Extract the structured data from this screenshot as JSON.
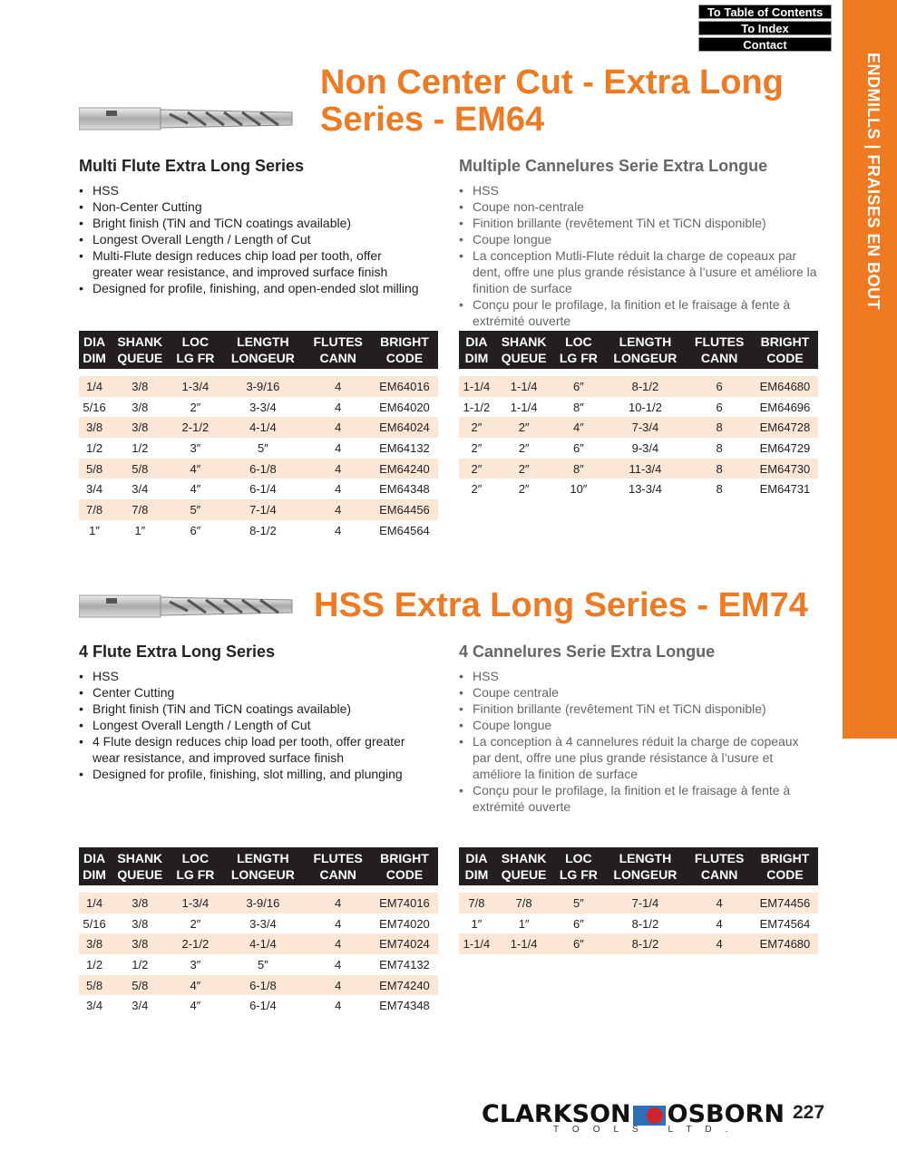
{
  "nav": {
    "toc": "To Table of Contents",
    "index": "To Index",
    "contact": "Contact"
  },
  "side_tab": "ENDMILLS | FRAISES EN BOUT",
  "accent": "#ef7a22",
  "s1": {
    "title1": "Non Center Cut - Extra Long",
    "title2": "Series - EM64",
    "en_heading": "Multi Flute Extra Long Series",
    "en": [
      "HSS",
      "Non-Center Cutting",
      "Bright finish (TiN and TiCN coatings available)",
      "Longest Overall Length / Length of Cut",
      "Multi-Flute design reduces chip load per tooth, offer greater wear resistance, and improved surface finish",
      "Designed for profile, finishing, and open-ended slot milling"
    ],
    "fr_heading": "Multiple Cannelures Serie Extra Longue",
    "fr": [
      "HSS",
      "Coupe non-centrale",
      "Finition brillante (revêtement TiN et TiCN disponible)",
      "Coupe longue",
      "La conception Mutli-Flute réduit la charge de copeaux par dent, offre une plus grande résistance à l’usure et améliore la finition de surface",
      "Conçu pour le profilage, la finition et le fraisage à fente à extrémité ouverte"
    ],
    "left_rows": [
      [
        "1/4",
        "3/8",
        "1-3/4",
        "3-9/16",
        "4",
        "EM64016"
      ],
      [
        "5/16",
        "3/8",
        "2″",
        "3-3/4",
        "4",
        "EM64020"
      ],
      [
        "3/8",
        "3/8",
        "2-1/2",
        "4-1/4",
        "4",
        "EM64024"
      ],
      [
        "1/2",
        "1/2",
        "3″",
        "5″",
        "4",
        "EM64132"
      ],
      [
        "5/8",
        "5/8",
        "4″",
        "6-1/8",
        "4",
        "EM64240"
      ],
      [
        "3/4",
        "3/4",
        "4″",
        "6-1/4",
        "4",
        "EM64348"
      ],
      [
        "7/8",
        "7/8",
        "5″",
        "7-1/4",
        "4",
        "EM64456"
      ],
      [
        "1″",
        "1″",
        "6″",
        "8-1/2",
        "4",
        "EM64564"
      ]
    ],
    "right_rows": [
      [
        "1-1/4",
        "1-1/4",
        "6″",
        "8-1/2",
        "6",
        "EM64680"
      ],
      [
        "1-1/2",
        "1-1/4",
        "8″",
        "10-1/2",
        "6",
        "EM64696"
      ],
      [
        "2″",
        "2″",
        "4″",
        "7-3/4",
        "8",
        "EM64728"
      ],
      [
        "2″",
        "2″",
        "6″",
        "9-3/4",
        "8",
        "EM64729"
      ],
      [
        "2″",
        "2″",
        "8″",
        "11-3/4",
        "8",
        "EM64730"
      ],
      [
        "2″",
        "2″",
        "10″",
        "13-3/4",
        "8",
        "EM64731"
      ]
    ]
  },
  "s2": {
    "title": "HSS Extra Long Series - EM74",
    "en_heading": "4 Flute Extra Long Series",
    "en": [
      "HSS",
      "Center Cutting",
      "Bright finish (TiN and TiCN coatings available)",
      "Longest Overall Length / Length of Cut",
      "4 Flute design reduces chip load per tooth, offer greater wear resistance, and improved surface finish",
      "Designed for profile, finishing, slot milling, and plunging"
    ],
    "fr_heading": "4 Cannelures Serie Extra Longue",
    "fr": [
      "HSS",
      "Coupe centrale",
      "Finition brillante (revêtement TiN et TiCN disponible)",
      "Coupe longue",
      "La conception à 4 cannelures réduit la charge de copeaux par dent, offre une plus grande résistance à l’usure et améliore la finition de surface",
      "Conçu pour le profilage, la finition et le fraisage à fente à extrémité ouverte"
    ],
    "left_rows": [
      [
        "1/4",
        "3/8",
        "1-3/4",
        "3-9/16",
        "4",
        "EM74016"
      ],
      [
        "5/16",
        "3/8",
        "2″",
        "3-3/4",
        "4",
        "EM74020"
      ],
      [
        "3/8",
        "3/8",
        "2-1/2",
        "4-1/4",
        "4",
        "EM74024"
      ],
      [
        "1/2",
        "1/2",
        "3″",
        "5″",
        "4",
        "EM74132"
      ],
      [
        "5/8",
        "5/8",
        "4″",
        "6-1/8",
        "4",
        "EM74240"
      ],
      [
        "3/4",
        "3/4",
        "4″",
        "6-1/4",
        "4",
        "EM74348"
      ]
    ],
    "right_rows": [
      [
        "7/8",
        "7/8",
        "5″",
        "7-1/4",
        "4",
        "EM74456"
      ],
      [
        "1″",
        "1″",
        "6″",
        "8-1/2",
        "4",
        "EM74564"
      ],
      [
        "1-1/4",
        "1-1/4",
        "6″",
        "8-1/2",
        "4",
        "EM74680"
      ]
    ]
  },
  "table_headers": [
    [
      "DIA",
      "DIM"
    ],
    [
      "SHANK",
      "QUEUE"
    ],
    [
      "LOC",
      "LG FR"
    ],
    [
      "LENGTH",
      "LONGEUR"
    ],
    [
      "FLUTES",
      "CANN"
    ],
    [
      "BRIGHT",
      "CODE"
    ]
  ],
  "footer": {
    "brand_left": "CLARKSON",
    "brand_right": "OSBORN",
    "brand_sub": "TOOLS LTD.",
    "page": "227"
  }
}
